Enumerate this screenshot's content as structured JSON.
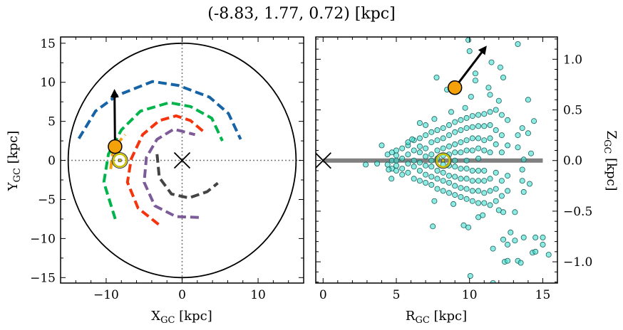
{
  "chart_data": [
    {
      "type": "line",
      "title": "(-8.83, 1.77, 0.72) [kpc]",
      "xlabel": {
        "main": "X",
        "sub": "GC",
        "unit": " [kpc]"
      },
      "ylabel": {
        "main": "Y",
        "sub": "GC",
        "unit": " [kpc]"
      },
      "xlim": [
        -16,
        16
      ],
      "ylim": [
        -15.7,
        15.8
      ],
      "xticks": [
        {
          "v": -10,
          "label": "−10"
        },
        {
          "v": 0,
          "label": "0"
        },
        {
          "v": 10,
          "label": "10"
        }
      ],
      "yticks": [
        {
          "v": -15,
          "label": "−15"
        },
        {
          "v": -10,
          "label": "−10"
        },
        {
          "v": -5,
          "label": "−5"
        },
        {
          "v": 0,
          "label": "0"
        },
        {
          "v": 5,
          "label": "5"
        },
        {
          "v": 10,
          "label": "10"
        },
        {
          "v": 15,
          "label": "15"
        }
      ],
      "boundary_circle_radius": 15,
      "galactic_center": [
        0,
        0
      ],
      "sun_position": [
        -8.2,
        0
      ],
      "object_position": [
        -8.83,
        1.77
      ],
      "velocity_arrow_tip": [
        -8.9,
        8.6
      ],
      "orbits": [
        {
          "color": "#1663a6",
          "points": [
            [
              -13.6,
              2.8
            ],
            [
              -11.4,
              6.3
            ],
            [
              -8.6,
              8.3
            ],
            [
              -3.9,
              10.1
            ],
            [
              -0.5,
              9.6
            ],
            [
              3.6,
              8.1
            ],
            [
              6.1,
              6.0
            ],
            [
              7.7,
              2.7
            ]
          ]
        },
        {
          "color": "#00b44c",
          "points": [
            [
              -8.8,
              -7.5
            ],
            [
              -10.3,
              -2.8
            ],
            [
              -9.7,
              0.8
            ],
            [
              -8.0,
              3.9
            ],
            [
              -5.5,
              6.3
            ],
            [
              -1.7,
              7.4
            ],
            [
              1.1,
              6.9
            ],
            [
              3.9,
              5.4
            ],
            [
              5.3,
              2.5
            ]
          ]
        },
        {
          "color": "#f5330c",
          "points": [
            [
              -3.1,
              -8.2
            ],
            [
              -5.8,
              -6.1
            ],
            [
              -7.2,
              -2.8
            ],
            [
              -6.7,
              0.2
            ],
            [
              -5.2,
              3.3
            ],
            [
              -3.0,
              5.1
            ],
            [
              -0.8,
              5.7
            ],
            [
              1.1,
              5.1
            ],
            [
              2.8,
              3.7
            ]
          ]
        },
        {
          "color": "#7d5b99",
          "points": [
            [
              2.2,
              -7.3
            ],
            [
              -0.8,
              -7.2
            ],
            [
              -3.6,
              -5.8
            ],
            [
              -5.0,
              -2.8
            ],
            [
              -4.7,
              0.4
            ],
            [
              -3.3,
              2.7
            ],
            [
              -1.1,
              4.0
            ],
            [
              1.7,
              3.3
            ]
          ]
        },
        {
          "color": "#444444",
          "points": [
            [
              -3.3,
              0.8
            ],
            [
              -3.0,
              -2.2
            ],
            [
              -1.4,
              -4.3
            ],
            [
              0.9,
              -4.8
            ],
            [
              3.3,
              -4.0
            ],
            [
              4.7,
              -2.9
            ]
          ]
        },
        {
          "color": "#f5a00a",
          "points": [
            [
              -9.4,
              -1.1
            ],
            [
              -9.1,
              1.5
            ],
            [
              -7.5,
              3.3
            ]
          ]
        }
      ]
    },
    {
      "type": "scatter",
      "xlabel": {
        "main": "R",
        "sub": "GC",
        "unit": " [kpc]"
      },
      "ylabel": {
        "main": "Z",
        "sub": "GC",
        "unit": " [kpc]"
      },
      "xlim": [
        -0.5,
        16
      ],
      "ylim": [
        -1.21,
        1.22
      ],
      "xticks": [
        {
          "v": 0,
          "label": "0"
        },
        {
          "v": 5,
          "label": "5"
        },
        {
          "v": 10,
          "label": "10"
        },
        {
          "v": 15,
          "label": "15"
        }
      ],
      "yticks": [
        {
          "v": -1.0,
          "label": "−1.0"
        },
        {
          "v": -0.5,
          "label": "−0.5"
        },
        {
          "v": 0,
          "label": "0.0"
        },
        {
          "v": 0.5,
          "label": "0.5"
        },
        {
          "v": 1.0,
          "label": "1.0"
        }
      ],
      "disk_line": [
        0,
        15
      ],
      "galactic_center": [
        0,
        0
      ],
      "sun_position": [
        8.2,
        0
      ],
      "object_position": [
        9.0,
        0.72
      ],
      "velocity_arrow_tip": [
        11.0,
        1.1
      ],
      "point_color": "#40e0d0",
      "core_columns": [
        {
          "R": 4.4,
          "Z": [
            0.06,
            -0.04
          ]
        },
        {
          "R": 4.7,
          "Z": [
            0.08,
            -0.08,
            0.0
          ]
        },
        {
          "R": 5.0,
          "Z": [
            0.05,
            -0.05,
            0.1,
            -0.1,
            0
          ]
        },
        {
          "R": 5.4,
          "Z": [
            0.12,
            -0.08,
            0.02,
            -0.14
          ]
        },
        {
          "R": 5.8,
          "Z": [
            0.15,
            -0.12,
            0.06,
            -0.03,
            0.18
          ]
        },
        {
          "R": 6.2,
          "Z": [
            -0.18,
            0.1,
            -0.06,
            0.2,
            0.0
          ]
        },
        {
          "R": 6.6,
          "Z": [
            0.22,
            -0.2,
            0.08,
            -0.1,
            0.14,
            -0.02
          ]
        },
        {
          "R": 7.0,
          "Z": [
            0.25,
            -0.22,
            0.12,
            -0.14,
            0.04,
            -0.05
          ]
        },
        {
          "R": 7.4,
          "Z": [
            0.28,
            -0.24,
            0.18,
            -0.16,
            0.06,
            -0.06,
            0.0
          ]
        },
        {
          "R": 7.8,
          "Z": [
            0.3,
            -0.28,
            0.2,
            -0.18,
            0.1,
            -0.1,
            0.02
          ]
        },
        {
          "R": 8.2,
          "Z": [
            0.32,
            -0.3,
            0.22,
            -0.2,
            0.12,
            -0.12,
            0.05,
            -0.04
          ]
        },
        {
          "R": 8.6,
          "Z": [
            0.35,
            -0.32,
            0.25,
            -0.22,
            0.14,
            -0.15,
            0.06,
            -0.05
          ]
        },
        {
          "R": 9.0,
          "Z": [
            0.38,
            -0.34,
            0.28,
            -0.25,
            0.16,
            -0.16,
            0.08,
            -0.06,
            0.0
          ]
        },
        {
          "R": 9.4,
          "Z": [
            0.4,
            -0.36,
            0.3,
            -0.27,
            0.18,
            -0.18,
            0.08,
            -0.08
          ]
        },
        {
          "R": 9.8,
          "Z": [
            0.42,
            -0.38,
            0.32,
            -0.28,
            0.2,
            -0.18,
            0.1,
            -0.08,
            0.0
          ]
        },
        {
          "R": 10.2,
          "Z": [
            0.44,
            -0.4,
            0.33,
            -0.3,
            0.22,
            -0.2,
            0.1,
            -0.1
          ]
        },
        {
          "R": 10.6,
          "Z": [
            0.45,
            -0.42,
            0.34,
            -0.3,
            0.22,
            -0.2,
            0.12,
            -0.1,
            0.02
          ]
        },
        {
          "R": 11.0,
          "Z": [
            0.46,
            -0.42,
            0.34,
            -0.32,
            0.2,
            -0.2,
            0.1,
            -0.1
          ]
        },
        {
          "R": 11.4,
          "Z": [
            0.48,
            -0.44,
            0.35,
            -0.3,
            0.22,
            -0.18,
            0.08
          ]
        },
        {
          "R": 11.8,
          "Z": [
            0.5,
            -0.4,
            0.3,
            -0.28,
            0.16,
            -0.12
          ]
        },
        {
          "R": 12.2,
          "Z": [
            0.45,
            -0.35,
            0.25,
            -0.2,
            0.08
          ]
        },
        {
          "R": 12.6,
          "Z": [
            0.4,
            -0.3,
            0.15,
            -0.15
          ]
        }
      ],
      "points": [
        [
          9.92,
          1.19
        ],
        [
          13.3,
          1.15
        ],
        [
          10.0,
          1.08
        ],
        [
          11.5,
          0.97
        ],
        [
          12.1,
          0.92
        ],
        [
          7.75,
          0.82
        ],
        [
          10.4,
          0.86
        ],
        [
          10.4,
          0.79
        ],
        [
          12.3,
          0.82
        ],
        [
          8.46,
          0.7
        ],
        [
          10.1,
          0.63
        ],
        [
          11.3,
          0.72
        ],
        [
          14.0,
          0.6
        ],
        [
          14.4,
          0.39
        ],
        [
          14.0,
          0.27
        ],
        [
          14.2,
          0.07
        ],
        [
          13.7,
          0.01
        ],
        [
          2.91,
          -0.04
        ],
        [
          3.69,
          -0.03
        ],
        [
          4.0,
          0.15
        ],
        [
          4.48,
          -0.09
        ],
        [
          4.67,
          -0.18
        ],
        [
          7.49,
          -0.65
        ],
        [
          9.6,
          -0.64
        ],
        [
          9.92,
          -0.66
        ],
        [
          10.05,
          -1.14
        ],
        [
          11.6,
          -1.21
        ],
        [
          11.6,
          -0.87
        ],
        [
          12.8,
          -0.71
        ],
        [
          12.3,
          -0.78
        ],
        [
          12.6,
          -0.83
        ],
        [
          13.1,
          -0.79
        ],
        [
          13.7,
          -0.76
        ],
        [
          14.5,
          -0.76
        ],
        [
          15.0,
          -0.76
        ],
        [
          15.0,
          -0.83
        ],
        [
          14.3,
          -0.91
        ],
        [
          14.5,
          -0.9
        ],
        [
          15.4,
          -0.93
        ],
        [
          12.4,
          -1.0
        ],
        [
          12.6,
          -0.99
        ],
        [
          13.3,
          -0.99
        ],
        [
          13.5,
          -1.01
        ],
        [
          10.6,
          -0.56
        ],
        [
          10.9,
          -0.54
        ],
        [
          12.3,
          -0.51
        ],
        [
          13.1,
          -0.51
        ],
        [
          12.0,
          -0.49
        ],
        [
          8.9,
          -0.43
        ],
        [
          7.6,
          -0.4
        ],
        [
          13.7,
          -0.31
        ],
        [
          14.1,
          -0.23
        ],
        [
          13.6,
          -0.2
        ],
        [
          13.6,
          -0.09
        ],
        [
          13.3,
          0.13
        ],
        [
          13.3,
          0.25
        ],
        [
          13.6,
          0.32
        ],
        [
          6.6,
          0.37
        ],
        [
          7.0,
          0.35
        ],
        [
          7.6,
          0.41
        ],
        [
          6.08,
          0.21
        ],
        [
          8.75,
          0.48
        ],
        [
          9.7,
          0.52
        ],
        [
          12.0,
          0.59
        ],
        [
          11.4,
          0.65
        ]
      ]
    }
  ]
}
